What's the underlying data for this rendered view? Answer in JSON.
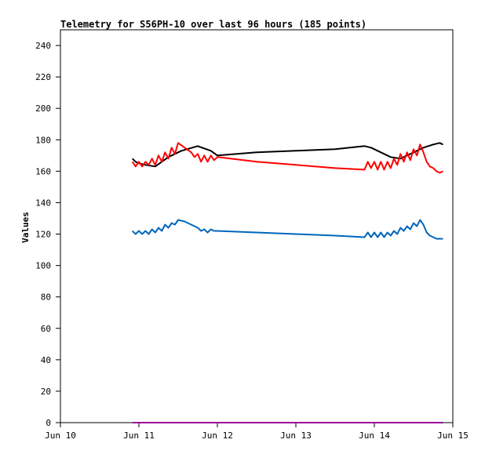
{
  "chart_data": {
    "type": "line",
    "title": "Telemetry for S56PH-10 over last 96 hours (185 points)",
    "xlabel": "",
    "ylabel": "Values",
    "xlim": [
      "Jun 10",
      "Jun 15"
    ],
    "ylim": [
      0,
      250
    ],
    "yticks": [
      0,
      20,
      40,
      60,
      80,
      100,
      120,
      140,
      160,
      180,
      200,
      220,
      240
    ],
    "xticks": [
      "Jun 10",
      "Jun 11",
      "Jun 12",
      "Jun 13",
      "Jun 14",
      "Jun 15"
    ],
    "grid": false,
    "legend": "none",
    "x_unit": "days",
    "series": [
      {
        "color": "#000000",
        "points": [
          [
            "Jun 10 22:00",
            168
          ],
          [
            "Jun 10 23:00",
            166
          ],
          [
            "Jun 11 00:00",
            165
          ],
          [
            "Jun 11 02:00",
            164
          ],
          [
            "Jun 11 05:00",
            163
          ],
          [
            "Jun 11 07:00",
            166
          ],
          [
            "Jun 11 09:00",
            169
          ],
          [
            "Jun 11 13:00",
            173
          ],
          [
            "Jun 11 18:00",
            176
          ],
          [
            "Jun 11 22:00",
            173
          ],
          [
            "Jun 12 00:00",
            170
          ],
          [
            "Jun 12 12:00",
            172
          ],
          [
            "Jun 13 00:00",
            173
          ],
          [
            "Jun 13 12:00",
            174
          ],
          [
            "Jun 13 21:00",
            176
          ],
          [
            "Jun 13 23:00",
            175
          ],
          [
            "Jun 14 02:00",
            172
          ],
          [
            "Jun 14 05:00",
            169
          ],
          [
            "Jun 14 08:00",
            168
          ],
          [
            "Jun 14 10:00",
            170
          ],
          [
            "Jun 14 13:00",
            173
          ],
          [
            "Jun 14 15:00",
            175
          ],
          [
            "Jun 14 18:00",
            177
          ],
          [
            "Jun 14 20:00",
            178
          ],
          [
            "Jun 14 21:00",
            177
          ]
        ]
      },
      {
        "color": "#ff0000",
        "points": [
          [
            "Jun 10 22:00",
            166
          ],
          [
            "Jun 10 23:00",
            163
          ],
          [
            "Jun 11 00:00",
            166
          ],
          [
            "Jun 11 01:00",
            163
          ],
          [
            "Jun 11 02:00",
            166
          ],
          [
            "Jun 11 03:00",
            164
          ],
          [
            "Jun 11 04:00",
            168
          ],
          [
            "Jun 11 05:00",
            164
          ],
          [
            "Jun 11 06:00",
            170
          ],
          [
            "Jun 11 07:00",
            166
          ],
          [
            "Jun 11 08:00",
            172
          ],
          [
            "Jun 11 09:00",
            168
          ],
          [
            "Jun 11 10:00",
            175
          ],
          [
            "Jun 11 11:00",
            171
          ],
          [
            "Jun 11 12:00",
            178
          ],
          [
            "Jun 11 14:00",
            175
          ],
          [
            "Jun 11 16:00",
            172
          ],
          [
            "Jun 11 17:00",
            169
          ],
          [
            "Jun 11 18:00",
            171
          ],
          [
            "Jun 11 19:00",
            166
          ],
          [
            "Jun 11 20:00",
            170
          ],
          [
            "Jun 11 21:00",
            166
          ],
          [
            "Jun 11 22:00",
            170
          ],
          [
            "Jun 11 23:00",
            167
          ],
          [
            "Jun 12 00:00",
            169
          ],
          [
            "Jun 12 12:00",
            166
          ],
          [
            "Jun 13 00:00",
            164
          ],
          [
            "Jun 13 12:00",
            162
          ],
          [
            "Jun 13 21:00",
            161
          ],
          [
            "Jun 13 22:00",
            166
          ],
          [
            "Jun 13 23:00",
            162
          ],
          [
            "Jun 14 00:00",
            166
          ],
          [
            "Jun 14 01:00",
            161
          ],
          [
            "Jun 14 02:00",
            166
          ],
          [
            "Jun 14 03:00",
            161
          ],
          [
            "Jun 14 04:00",
            166
          ],
          [
            "Jun 14 05:00",
            162
          ],
          [
            "Jun 14 06:00",
            168
          ],
          [
            "Jun 14 07:00",
            164
          ],
          [
            "Jun 14 08:00",
            171
          ],
          [
            "Jun 14 09:00",
            166
          ],
          [
            "Jun 14 10:00",
            172
          ],
          [
            "Jun 14 11:00",
            167
          ],
          [
            "Jun 14 12:00",
            174
          ],
          [
            "Jun 14 13:00",
            170
          ],
          [
            "Jun 14 14:00",
            177
          ],
          [
            "Jun 14 15:00",
            172
          ],
          [
            "Jun 14 16:00",
            166
          ],
          [
            "Jun 14 17:00",
            163
          ],
          [
            "Jun 14 18:00",
            162
          ],
          [
            "Jun 14 19:00",
            160
          ],
          [
            "Jun 14 20:00",
            159
          ],
          [
            "Jun 14 21:00",
            160
          ]
        ]
      },
      {
        "color": "#0066bb",
        "points": [
          [
            "Jun 10 22:00",
            122
          ],
          [
            "Jun 10 23:00",
            120
          ],
          [
            "Jun 11 00:00",
            122
          ],
          [
            "Jun 11 01:00",
            120
          ],
          [
            "Jun 11 02:00",
            122
          ],
          [
            "Jun 11 03:00",
            120
          ],
          [
            "Jun 11 04:00",
            123
          ],
          [
            "Jun 11 05:00",
            121
          ],
          [
            "Jun 11 06:00",
            124
          ],
          [
            "Jun 11 07:00",
            122
          ],
          [
            "Jun 11 08:00",
            126
          ],
          [
            "Jun 11 09:00",
            124
          ],
          [
            "Jun 11 10:00",
            127
          ],
          [
            "Jun 11 11:00",
            126
          ],
          [
            "Jun 11 12:00",
            129
          ],
          [
            "Jun 11 14:00",
            128
          ],
          [
            "Jun 11 16:00",
            126
          ],
          [
            "Jun 11 18:00",
            124
          ],
          [
            "Jun 11 19:00",
            122
          ],
          [
            "Jun 11 20:00",
            123
          ],
          [
            "Jun 11 21:00",
            121
          ],
          [
            "Jun 11 22:00",
            123
          ],
          [
            "Jun 11 23:00",
            122
          ],
          [
            "Jun 12 00:00",
            122
          ],
          [
            "Jun 12 12:00",
            121
          ],
          [
            "Jun 13 00:00",
            120
          ],
          [
            "Jun 13 12:00",
            119
          ],
          [
            "Jun 13 21:00",
            118
          ],
          [
            "Jun 13 22:00",
            121
          ],
          [
            "Jun 13 23:00",
            118
          ],
          [
            "Jun 14 00:00",
            121
          ],
          [
            "Jun 14 01:00",
            118
          ],
          [
            "Jun 14 02:00",
            121
          ],
          [
            "Jun 14 03:00",
            118
          ],
          [
            "Jun 14 04:00",
            121
          ],
          [
            "Jun 14 05:00",
            119
          ],
          [
            "Jun 14 06:00",
            122
          ],
          [
            "Jun 14 07:00",
            120
          ],
          [
            "Jun 14 08:00",
            124
          ],
          [
            "Jun 14 09:00",
            122
          ],
          [
            "Jun 14 10:00",
            125
          ],
          [
            "Jun 14 11:00",
            123
          ],
          [
            "Jun 14 12:00",
            127
          ],
          [
            "Jun 14 13:00",
            125
          ],
          [
            "Jun 14 14:00",
            129
          ],
          [
            "Jun 14 15:00",
            126
          ],
          [
            "Jun 14 16:00",
            121
          ],
          [
            "Jun 14 17:00",
            119
          ],
          [
            "Jun 14 18:00",
            118
          ],
          [
            "Jun 14 19:00",
            117
          ],
          [
            "Jun 14 20:00",
            117
          ],
          [
            "Jun 14 21:00",
            117
          ]
        ]
      },
      {
        "color": "#990099",
        "points": [
          [
            "Jun 10 22:00",
            0
          ],
          [
            "Jun 14 21:00",
            0
          ]
        ]
      }
    ]
  }
}
